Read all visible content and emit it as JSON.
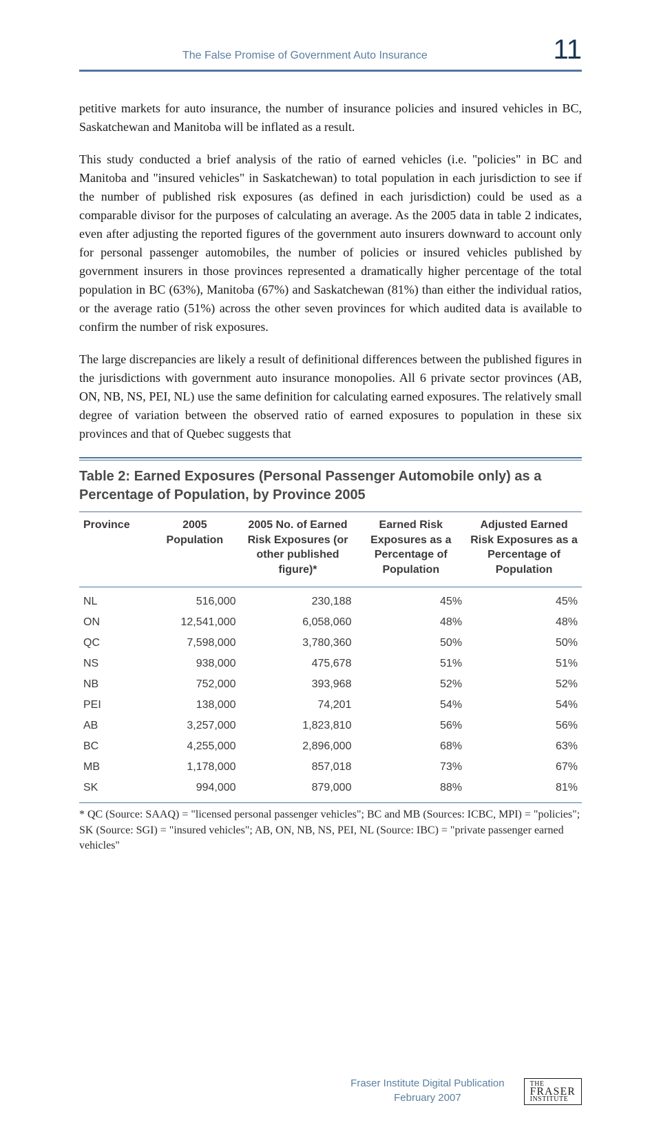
{
  "header": {
    "running_head": "The False Promise of Government Auto Insurance",
    "page_number": "11",
    "rule_color": "#4f76a0"
  },
  "paragraphs": {
    "p1": "petitive markets for auto insurance, the number of insurance policies and insured vehicles in BC, Saskatchewan and Manitoba will be inflated as a result.",
    "p2": "This study conducted a brief analysis of the ratio of earned vehicles (i.e. \"policies\" in BC and Manitoba and \"insured vehicles\" in Saskatchewan) to total population in each jurisdiction to see if the number of published risk exposures (as defined in each jurisdiction) could be used as a comparable divisor for the purposes of calculating an average. As the 2005 data in table 2 indicates, even after adjusting the reported figures of the government auto insurers downward to account only for personal passenger automobiles, the number of policies or insured vehicles published by government insurers in those provinces represented a dramatically higher percentage of the total population in BC (63%), Manitoba (67%) and Saskatchewan (81%) than either the individual ratios, or the average ratio (51%) across the other seven provinces for which audited data is available to confirm the number of risk exposures.",
    "p3": "The large discrepancies are likely a result of definitional differences between the published figures in the jurisdictions with government auto insurance monopolies. All 6 private sector provinces (AB, ON, NB, NS, PEI, NL) use the same definition for calculating earned exposures. The relatively small degree of variation between the observed ratio of earned exposures to population in these six provinces and that of Quebec suggests that"
  },
  "table": {
    "title": "Table 2: Earned Exposures (Personal Passenger Automobile only) as a Percentage of Population, by Province 2005",
    "columns": {
      "c0": "Province",
      "c1": "2005 Population",
      "c2": "2005 No. of Earned Risk Exposures (or other published figure)*",
      "c3": "Earned Risk Exposures as a Percentage of Population",
      "c4": "Adjusted Earned Risk Exposures as a Percentage of Population"
    },
    "rows": [
      {
        "prov": "NL",
        "pop": "516,000",
        "exp": "230,188",
        "pct1": "45%",
        "pct2": "45%"
      },
      {
        "prov": "ON",
        "pop": "12,541,000",
        "exp": "6,058,060",
        "pct1": "48%",
        "pct2": "48%"
      },
      {
        "prov": "QC",
        "pop": "7,598,000",
        "exp": "3,780,360",
        "pct1": "50%",
        "pct2": "50%"
      },
      {
        "prov": "NS",
        "pop": "938,000",
        "exp": "475,678",
        "pct1": "51%",
        "pct2": "51%"
      },
      {
        "prov": "NB",
        "pop": "752,000",
        "exp": "393,968",
        "pct1": "52%",
        "pct2": "52%"
      },
      {
        "prov": "PEI",
        "pop": "138,000",
        "exp": "74,201",
        "pct1": "54%",
        "pct2": "54%"
      },
      {
        "prov": "AB",
        "pop": "3,257,000",
        "exp": "1,823,810",
        "pct1": "56%",
        "pct2": "56%"
      },
      {
        "prov": "BC",
        "pop": "4,255,000",
        "exp": "2,896,000",
        "pct1": "68%",
        "pct2": "63%"
      },
      {
        "prov": "MB",
        "pop": "1,178,000",
        "exp": "857,018",
        "pct1": "73%",
        "pct2": "67%"
      },
      {
        "prov": "SK",
        "pop": "994,000",
        "exp": "879,000",
        "pct1": "88%",
        "pct2": "81%"
      }
    ],
    "footnote": "* QC (Source: SAAQ) = \"licensed personal passenger vehicles\"; BC and MB (Sources: ICBC, MPI) = \"policies\"; SK (Source: SGI) = \"insured vehicles\"; AB, ON, NB, NS, PEI, NL (Source: IBC) = \"private passenger earned vehicles\""
  },
  "footer": {
    "line1": "Fraser Institute Digital Publication",
    "line2": "February 2007",
    "logo_small1": "THE",
    "logo_big": "FRASER",
    "logo_small2": "INSTITUTE"
  }
}
